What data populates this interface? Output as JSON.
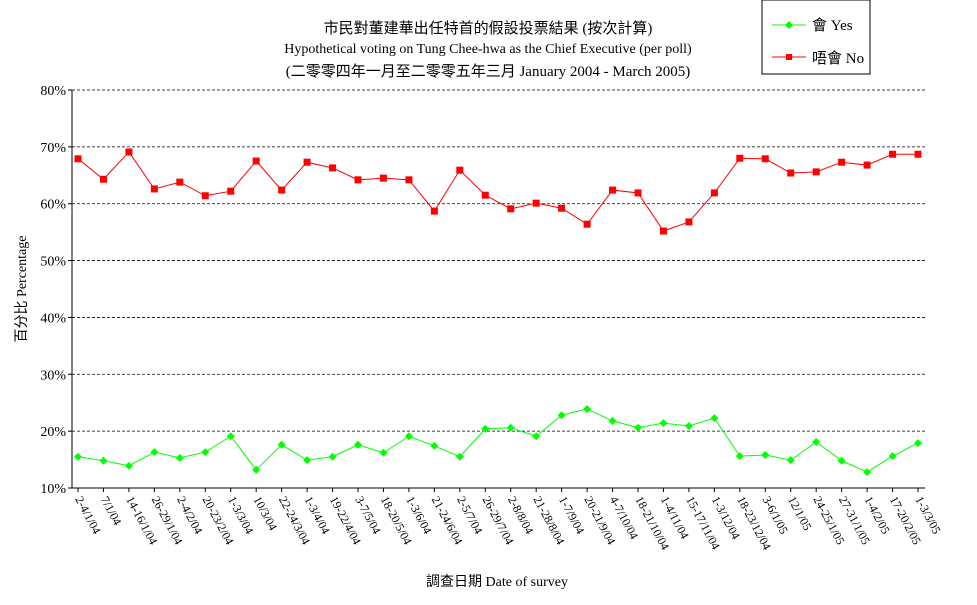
{
  "chart_data": {
    "type": "line",
    "title": "市民對董建華出任特首的假設投票結果 (按次計算)",
    "subtitle": "Hypothetical voting on Tung Chee-hwa as the Chief Executive (per poll)",
    "subtitle2": "(二零零四年一月至二零零五年三月 January 2004 - March 2005)",
    "xlabel": "調查日期 Date of survey",
    "ylabel": "百分比 Percentage",
    "ylim": [
      10,
      80
    ],
    "yticks": [
      "10%",
      "20%",
      "30%",
      "40%",
      "50%",
      "60%",
      "70%",
      "80%"
    ],
    "grid": true,
    "legend_position": "top-right",
    "categories": [
      "2-4/1/04",
      "7/1/04",
      "14-16/1/04",
      "26-29/1/04",
      "2-4/2/04",
      "20-23/2/04",
      "1-3/3/04",
      "10/3/04",
      "22-24/3/04",
      "1-3/4/04",
      "19-22/4/04",
      "3-7/5/04",
      "18-20/5/04",
      "1-3/6/04",
      "21-24/6/04",
      "2-5/7/04",
      "26-29/7/04",
      "2-8/8/04",
      "21-28/8/04",
      "1-7/9/04",
      "20-21/9/04",
      "4-7/10/04",
      "18-21/10/04",
      "1-4/11/04",
      "15-17/11/04",
      "1-3/12/04",
      "18-23/12/04",
      "3-6/1/05",
      "12/1/05",
      "24-25/1/05",
      "27-31/1/05",
      "1-4/2/05",
      "17-20/2/05",
      "1-3/3/05"
    ],
    "series": [
      {
        "name": "會 Yes",
        "color": "#00ff00",
        "marker": "diamond",
        "values": [
          15.5,
          14.8,
          13.9,
          16.3,
          15.3,
          16.3,
          19.1,
          13.2,
          17.6,
          14.9,
          15.5,
          17.6,
          16.2,
          19.1,
          17.4,
          15.5,
          20.4,
          20.6,
          19.1,
          22.8,
          23.9,
          21.8,
          20.6,
          21.4,
          20.9,
          22.3,
          15.6,
          15.8,
          14.9,
          18.1,
          14.8,
          12.8,
          15.6,
          17.9
        ]
      },
      {
        "name": "唔會 No",
        "color": "#ff0000",
        "marker": "square",
        "values": [
          67.9,
          64.3,
          69.1,
          62.6,
          63.8,
          61.4,
          62.2,
          67.5,
          62.4,
          67.3,
          66.3,
          64.2,
          64.5,
          64.2,
          58.7,
          65.9,
          61.5,
          59.1,
          60.1,
          59.2,
          56.4,
          62.4,
          61.9,
          55.2,
          56.8,
          61.9,
          68.0,
          67.9,
          65.4,
          65.6,
          67.3,
          66.8,
          68.7,
          68.7
        ]
      }
    ]
  }
}
